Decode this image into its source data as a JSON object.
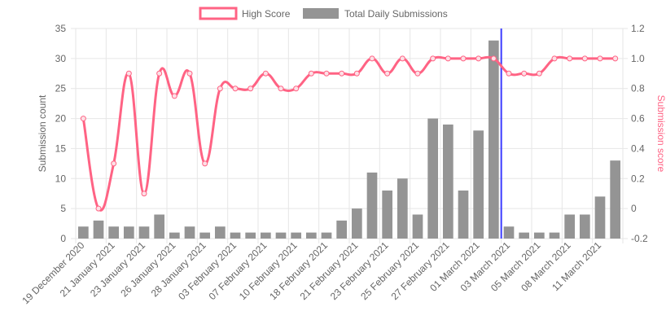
{
  "chart_data": {
    "type": "bar",
    "categories": [
      "19 December 2020",
      "",
      "21 January 2021",
      "",
      "23 January 2021",
      "",
      "26 January 2021",
      "",
      "28 January 2021",
      "",
      "03 February 2021",
      "",
      "07 February 2021",
      "",
      "10 February 2021",
      "",
      "18 February 2021",
      "",
      "21 February 2021",
      "",
      "23 February 2021",
      "",
      "25 February 2021",
      "",
      "27 February 2021",
      "",
      "01 March 2021",
      "",
      "03 March 2021",
      "",
      "05 March 2021",
      "",
      "08 March 2021",
      "",
      "11 March 2021",
      ""
    ],
    "xtick_labels": [
      "19 December 2020",
      "21 January 2021",
      "23 January 2021",
      "26 January 2021",
      "28 January 2021",
      "03 February 2021",
      "07 February 2021",
      "10 February 2021",
      "18 February 2021",
      "21 February 2021",
      "23 February 2021",
      "25 February 2021",
      "27 February 2021",
      "01 March 2021",
      "03 March 2021",
      "05 March 2021",
      "08 March 2021",
      "11 March 2021"
    ],
    "series": [
      {
        "name": "Total Daily Submissions",
        "kind": "bar",
        "axis": "left",
        "color": "#949494",
        "values": [
          2,
          3,
          2,
          2,
          2,
          4,
          1,
          2,
          1,
          2,
          1,
          1,
          1,
          1,
          1,
          1,
          1,
          3,
          5,
          11,
          8,
          10,
          4,
          20,
          19,
          8,
          18,
          33,
          2,
          1,
          1,
          1,
          4,
          4,
          7,
          13
        ]
      },
      {
        "name": "High Score",
        "kind": "line",
        "axis": "right",
        "color": "#ff6384",
        "values": [
          0.6,
          0.0,
          0.3,
          0.9,
          0.1,
          0.9,
          0.75,
          0.9,
          0.3,
          0.8,
          0.8,
          0.8,
          0.9,
          0.8,
          0.8,
          0.9,
          0.9,
          0.9,
          0.9,
          1.0,
          0.9,
          1.0,
          0.9,
          1.0,
          1.0,
          1.0,
          1.0,
          1.0,
          0.9,
          0.9,
          0.9,
          1.0,
          1.0,
          1.0,
          1.0,
          1.0
        ]
      }
    ],
    "y_left": {
      "label": "Submission count",
      "min": 0,
      "max": 35,
      "ticks": [
        "35",
        "30",
        "25",
        "20",
        "15",
        "10",
        "5",
        "0"
      ]
    },
    "y_right": {
      "label": "Submission score",
      "min": -0.2,
      "max": 1.2,
      "ticks": [
        "1.2",
        "1.0",
        "0.8",
        "0.6",
        "0.4",
        "0.2",
        "0",
        "-0.2"
      ]
    },
    "marker_line_index": 27.5,
    "marker_line_color": "#3b3bff",
    "grid": true,
    "legend": {
      "position": "top-center",
      "items": [
        {
          "label": "High Score",
          "color": "#ff6384",
          "style": "outline"
        },
        {
          "label": "Total Daily Submissions",
          "color": "#949494",
          "style": "fill"
        }
      ]
    }
  }
}
